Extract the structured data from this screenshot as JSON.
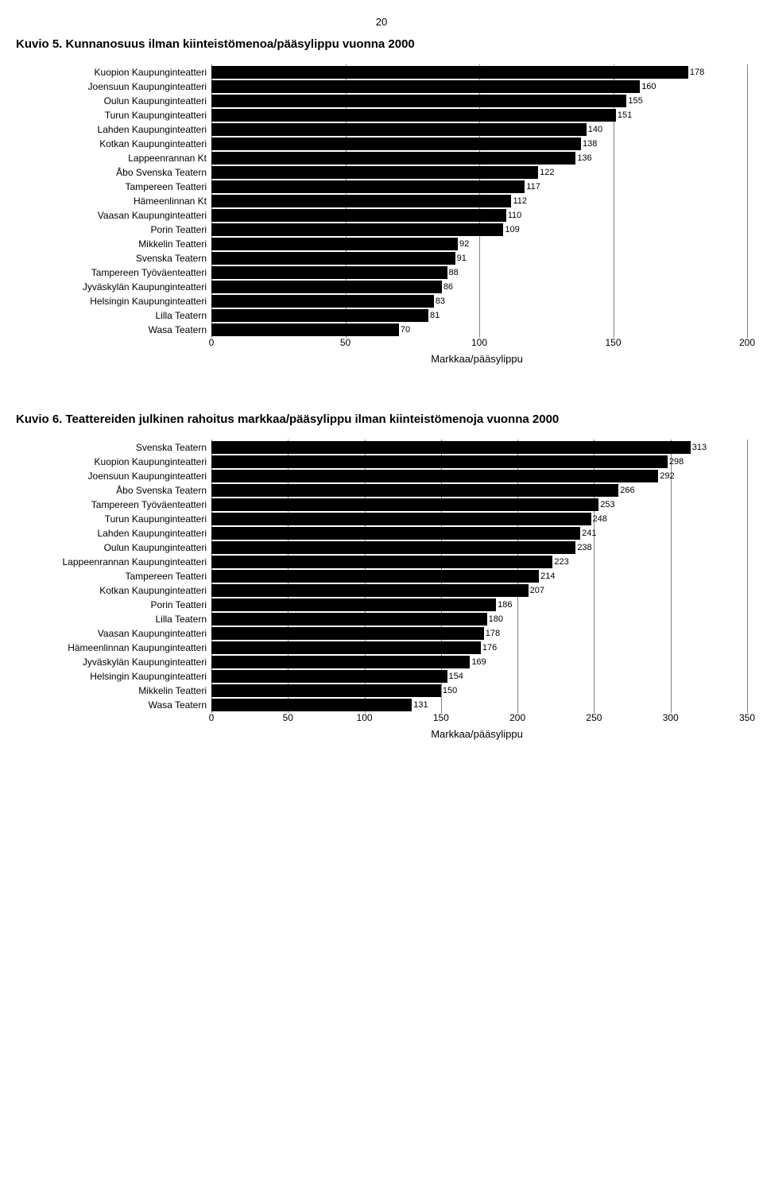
{
  "page_number": "20",
  "grid_color": "#808080",
  "bar_color": "#000000",
  "background_color": "#ffffff",
  "label_fontsize": 12,
  "title_fontsize": 15,
  "chart1": {
    "type": "bar",
    "title": "Kuvio 5. Kunnanosuus ilman kiinteistömenoa/pääsylippu vuonna 2000",
    "bar_color": "#000000",
    "grid_color": "#808080",
    "xmin": 0,
    "xmax": 200,
    "xtick_step": 50,
    "xlabel": "Markkaa/pääsylippu",
    "rows": [
      {
        "label": "Kuopion Kaupunginteatteri",
        "value": 178
      },
      {
        "label": "Joensuun Kaupunginteatteri",
        "value": 160
      },
      {
        "label": "Oulun Kaupunginteatteri",
        "value": 155
      },
      {
        "label": "Turun Kaupunginteatteri",
        "value": 151
      },
      {
        "label": "Lahden Kaupunginteatteri",
        "value": 140
      },
      {
        "label": "Kotkan Kaupunginteatteri",
        "value": 138
      },
      {
        "label": "Lappeenrannan Kt",
        "value": 136
      },
      {
        "label": "Åbo Svenska Teatern",
        "value": 122
      },
      {
        "label": "Tampereen Teatteri",
        "value": 117
      },
      {
        "label": "Hämeenlinnan Kt",
        "value": 112
      },
      {
        "label": "Vaasan Kaupunginteatteri",
        "value": 110
      },
      {
        "label": "Porin Teatteri",
        "value": 109
      },
      {
        "label": "Mikkelin Teatteri",
        "value": 92
      },
      {
        "label": "Svenska Teatern",
        "value": 91
      },
      {
        "label": "Tampereen Työväenteatteri",
        "value": 88
      },
      {
        "label": "Jyväskylän Kaupunginteatteri",
        "value": 86
      },
      {
        "label": "Helsingin Kaupunginteatteri",
        "value": 83
      },
      {
        "label": "Lilla Teatern",
        "value": 81
      },
      {
        "label": "Wasa Teatern",
        "value": 70
      }
    ]
  },
  "chart2": {
    "type": "bar",
    "title": "Kuvio 6. Teattereiden julkinen rahoitus markkaa/pääsylippu ilman kiinteistömenoja vuonna 2000",
    "bar_color": "#000000",
    "grid_color": "#808080",
    "xmin": 0,
    "xmax": 350,
    "xtick_step": 50,
    "xlabel": "Markkaa/pääsylippu",
    "rows": [
      {
        "label": "Svenska Teatern",
        "value": 313
      },
      {
        "label": "Kuopion Kaupunginteatteri",
        "value": 298
      },
      {
        "label": "Joensuun Kaupunginteatteri",
        "value": 292
      },
      {
        "label": "Åbo Svenska Teatern",
        "value": 266
      },
      {
        "label": "Tampereen Työväenteatteri",
        "value": 253
      },
      {
        "label": "Turun Kaupunginteatteri",
        "value": 248
      },
      {
        "label": "Lahden Kaupunginteatteri",
        "value": 241
      },
      {
        "label": "Oulun Kaupunginteatteri",
        "value": 238
      },
      {
        "label": "Lappeenrannan Kaupunginteatteri",
        "value": 223
      },
      {
        "label": "Tampereen Teatteri",
        "value": 214
      },
      {
        "label": "Kotkan Kaupunginteatteri",
        "value": 207
      },
      {
        "label": "Porin Teatteri",
        "value": 186
      },
      {
        "label": "Lilla Teatern",
        "value": 180
      },
      {
        "label": "Vaasan Kaupunginteatteri",
        "value": 178
      },
      {
        "label": "Hämeenlinnan Kaupunginteatteri",
        "value": 176
      },
      {
        "label": "Jyväskylän Kaupunginteatteri",
        "value": 169
      },
      {
        "label": "Helsingin Kaupunginteatteri",
        "value": 154
      },
      {
        "label": "Mikkelin Teatteri",
        "value": 150
      },
      {
        "label": "Wasa Teatern",
        "value": 131
      }
    ]
  }
}
